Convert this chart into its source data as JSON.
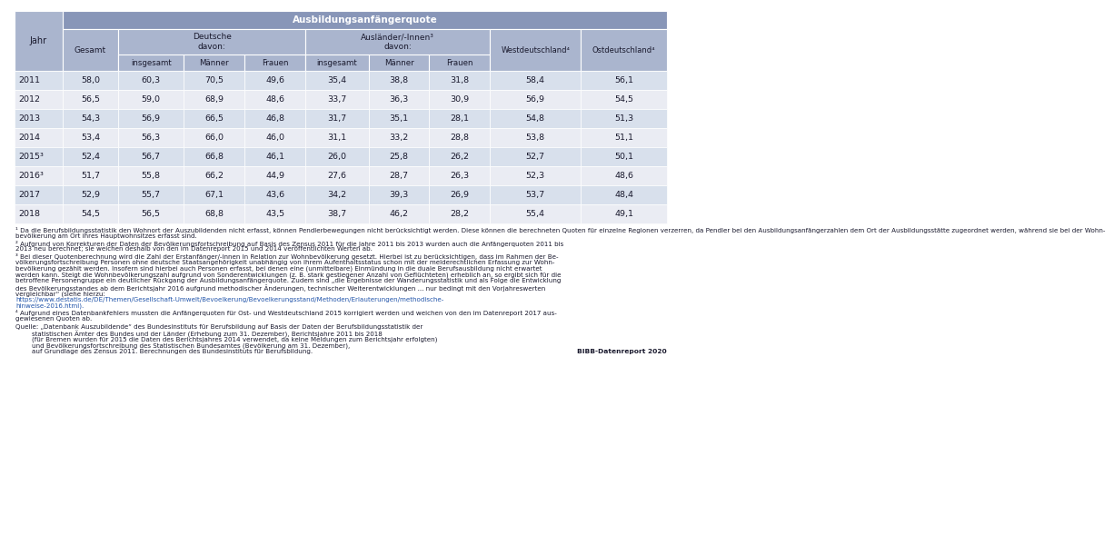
{
  "header_top": "Ausbildungsanfängerquote",
  "rows": [
    [
      "2011",
      "58,0",
      "60,3",
      "70,5",
      "49,6",
      "35,4",
      "38,8",
      "31,8",
      "58,4",
      "56,1"
    ],
    [
      "2012",
      "56,5",
      "59,0",
      "68,9",
      "48,6",
      "33,7",
      "36,3",
      "30,9",
      "56,9",
      "54,5"
    ],
    [
      "2013",
      "54,3",
      "56,9",
      "66,5",
      "46,8",
      "31,7",
      "35,1",
      "28,1",
      "54,8",
      "51,3"
    ],
    [
      "2014",
      "53,4",
      "56,3",
      "66,0",
      "46,0",
      "31,1",
      "33,2",
      "28,8",
      "53,8",
      "51,1"
    ],
    [
      "2015³",
      "52,4",
      "56,7",
      "66,8",
      "46,1",
      "26,0",
      "25,8",
      "26,2",
      "52,7",
      "50,1"
    ],
    [
      "2016³",
      "51,7",
      "55,8",
      "66,2",
      "44,9",
      "27,6",
      "28,7",
      "26,3",
      "52,3",
      "48,6"
    ],
    [
      "2017",
      "52,9",
      "55,7",
      "67,1",
      "43,6",
      "34,2",
      "39,3",
      "26,9",
      "53,7",
      "48,4"
    ],
    [
      "2018",
      "54,5",
      "56,5",
      "68,8",
      "43,5",
      "38,7",
      "46,2",
      "28,2",
      "55,4",
      "49,1"
    ]
  ],
  "fn1": "¹ Da die Berufsbildungsstatistik den Wohnort der Auszubildenden nicht erfasst, können Pendlerbewegungen nicht berücksichtigt werden. Diese können die berechneten Quoten für einzelne Regionen verzerren, da Pendler bei den Ausbildungsanfängerzahlen dem Ort der Ausbildungsstätte zugeordnet werden, während sie bei der Wohn-",
  "fn1b": "bevölkerung am Ort ihres Hauptwohnsitzes erfasst sind.",
  "fn2": "² Aufgrund von Korrekturen der Daten der Bevölkerungsfortschreibung auf Basis des Zensus 2011 für die Jahre 2011 bis 2013 wurden auch die Anfängerquoten 2011 bis",
  "fn2b": "2013 neu berechnet; sie weichen deshalb von den im Datenreport 2015 und 2014 veröffentlichten Werten ab.",
  "fn3a": "³ Bei dieser Quotenberechnung wird die Zahl der Erstanfänger/-innen in Relation zur Wohnbevölkerung gesetzt. Hierbei ist zu berücksichtigen, dass im Rahmen der Be-",
  "fn3b": "völkerungsfortschreibung Personen ohne deutsche Staatsangehörigkeit unabhängig von ihrem Aufenthaltsstatus schon mit der melderechtlichen Erfassung zur Wohn-",
  "fn3c": "bevölkerung gezählt werden. Insofern sind hierbei auch Personen erfasst, bei denen eine (unmittelbare) Einmündung in die duale Berufsausbildung nicht erwartet",
  "fn3d": "werden kann. Steigt die Wohnbevölkerungszahl aufgrund von Sonderentwicklungen (z. B. stark gestiegener Anzahl von Geflüchteten) erheblich an, so ergibt sich für die",
  "fn3e": "betroffene Personengruppe ein deutlicher Rückgang der Ausbildungsanfängerquote. Zudem sind „die Ergebnisse der Wanderungsstatistik und als Folge die Entwicklung",
  "fn3f": "des Bevölkerungsstandes ab dem Berichtsjahr 2016 aufgrund methodischer Änderungen, technischer Weiterentwicklungen ... nur bedingt mit den Vorjahreswerten",
  "fn3g": "vergleichbar“ (siehe hierzu:",
  "fn3g_url": "https://www.destatis.de/DE/Themen/Gesellschaft-Umwelt/Bevoelkerung/Bevoelkerungsstand/Methoden/Erlauterungen/methodische-",
  "fn3h": "hinweise-2016.html).",
  "fn4": "⁴ Aufgrund eines Datenbankfehlers mussten die Anfängerquoten für Ost- und Westdeutschland 2015 korrigiert werden und weichen von den im Datenreport 2017 aus-",
  "fn4b": "gewiesenen Quoten ab.",
  "src1": "Quelle: „Datenbank Auszubildende“ des Bundesinstituts für Berufsbildung auf Basis der Daten der Berufsbildungsstatistik der",
  "src2": "        statistischen Ämter des Bundes und der Länder (Erhebung zum 31. Dezember), Berichtsjahre 2011 bis 2018",
  "src3": "        (für Bremen wurden für 2015 die Daten des Berichtsjahres 2014 verwendet, da keine Meldungen zum Berichtsjahr erfolgten)",
  "src4": "        und Bevölkerungsfortschreibung des Statistischen Bundesamtes (Bevölkerung am 31. Dezember),",
  "src5": "        auf Grundlage des Zensus 2011. Berechnungen des Bundesinstituts für Berufsbildung.",
  "branding": "BIBB-Datenreport 2020",
  "header_bg": "#8896b8",
  "subheader_bg": "#aab5ce",
  "row_bg_odd": "#d8e0ec",
  "row_bg_even": "#eaecf3",
  "text_color": "#1a1a2e",
  "border_color": "#ffffff",
  "url_color": "#2255aa"
}
